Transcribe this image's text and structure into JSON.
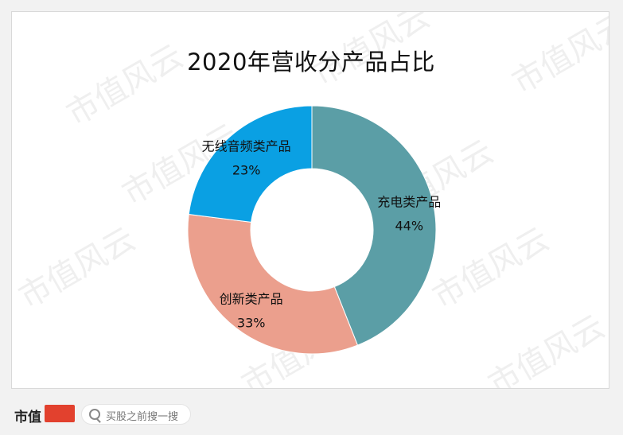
{
  "chart_data": {
    "type": "pie",
    "title": "2020年营收分产品占比",
    "slices": [
      {
        "name": "充电类产品",
        "value": 44,
        "label": "44%",
        "color": "#5b9ea6"
      },
      {
        "name": "创新类产品",
        "value": 33,
        "label": "33%",
        "color": "#eb9f8d"
      },
      {
        "name": "无线音频类产品",
        "value": 23,
        "label": "23%",
        "color": "#0aa0e3"
      }
    ],
    "donut": true
  },
  "watermark": {
    "text": "市值风云"
  },
  "footer": {
    "brand": "市值",
    "search_placeholder": "买股之前搜一搜"
  }
}
